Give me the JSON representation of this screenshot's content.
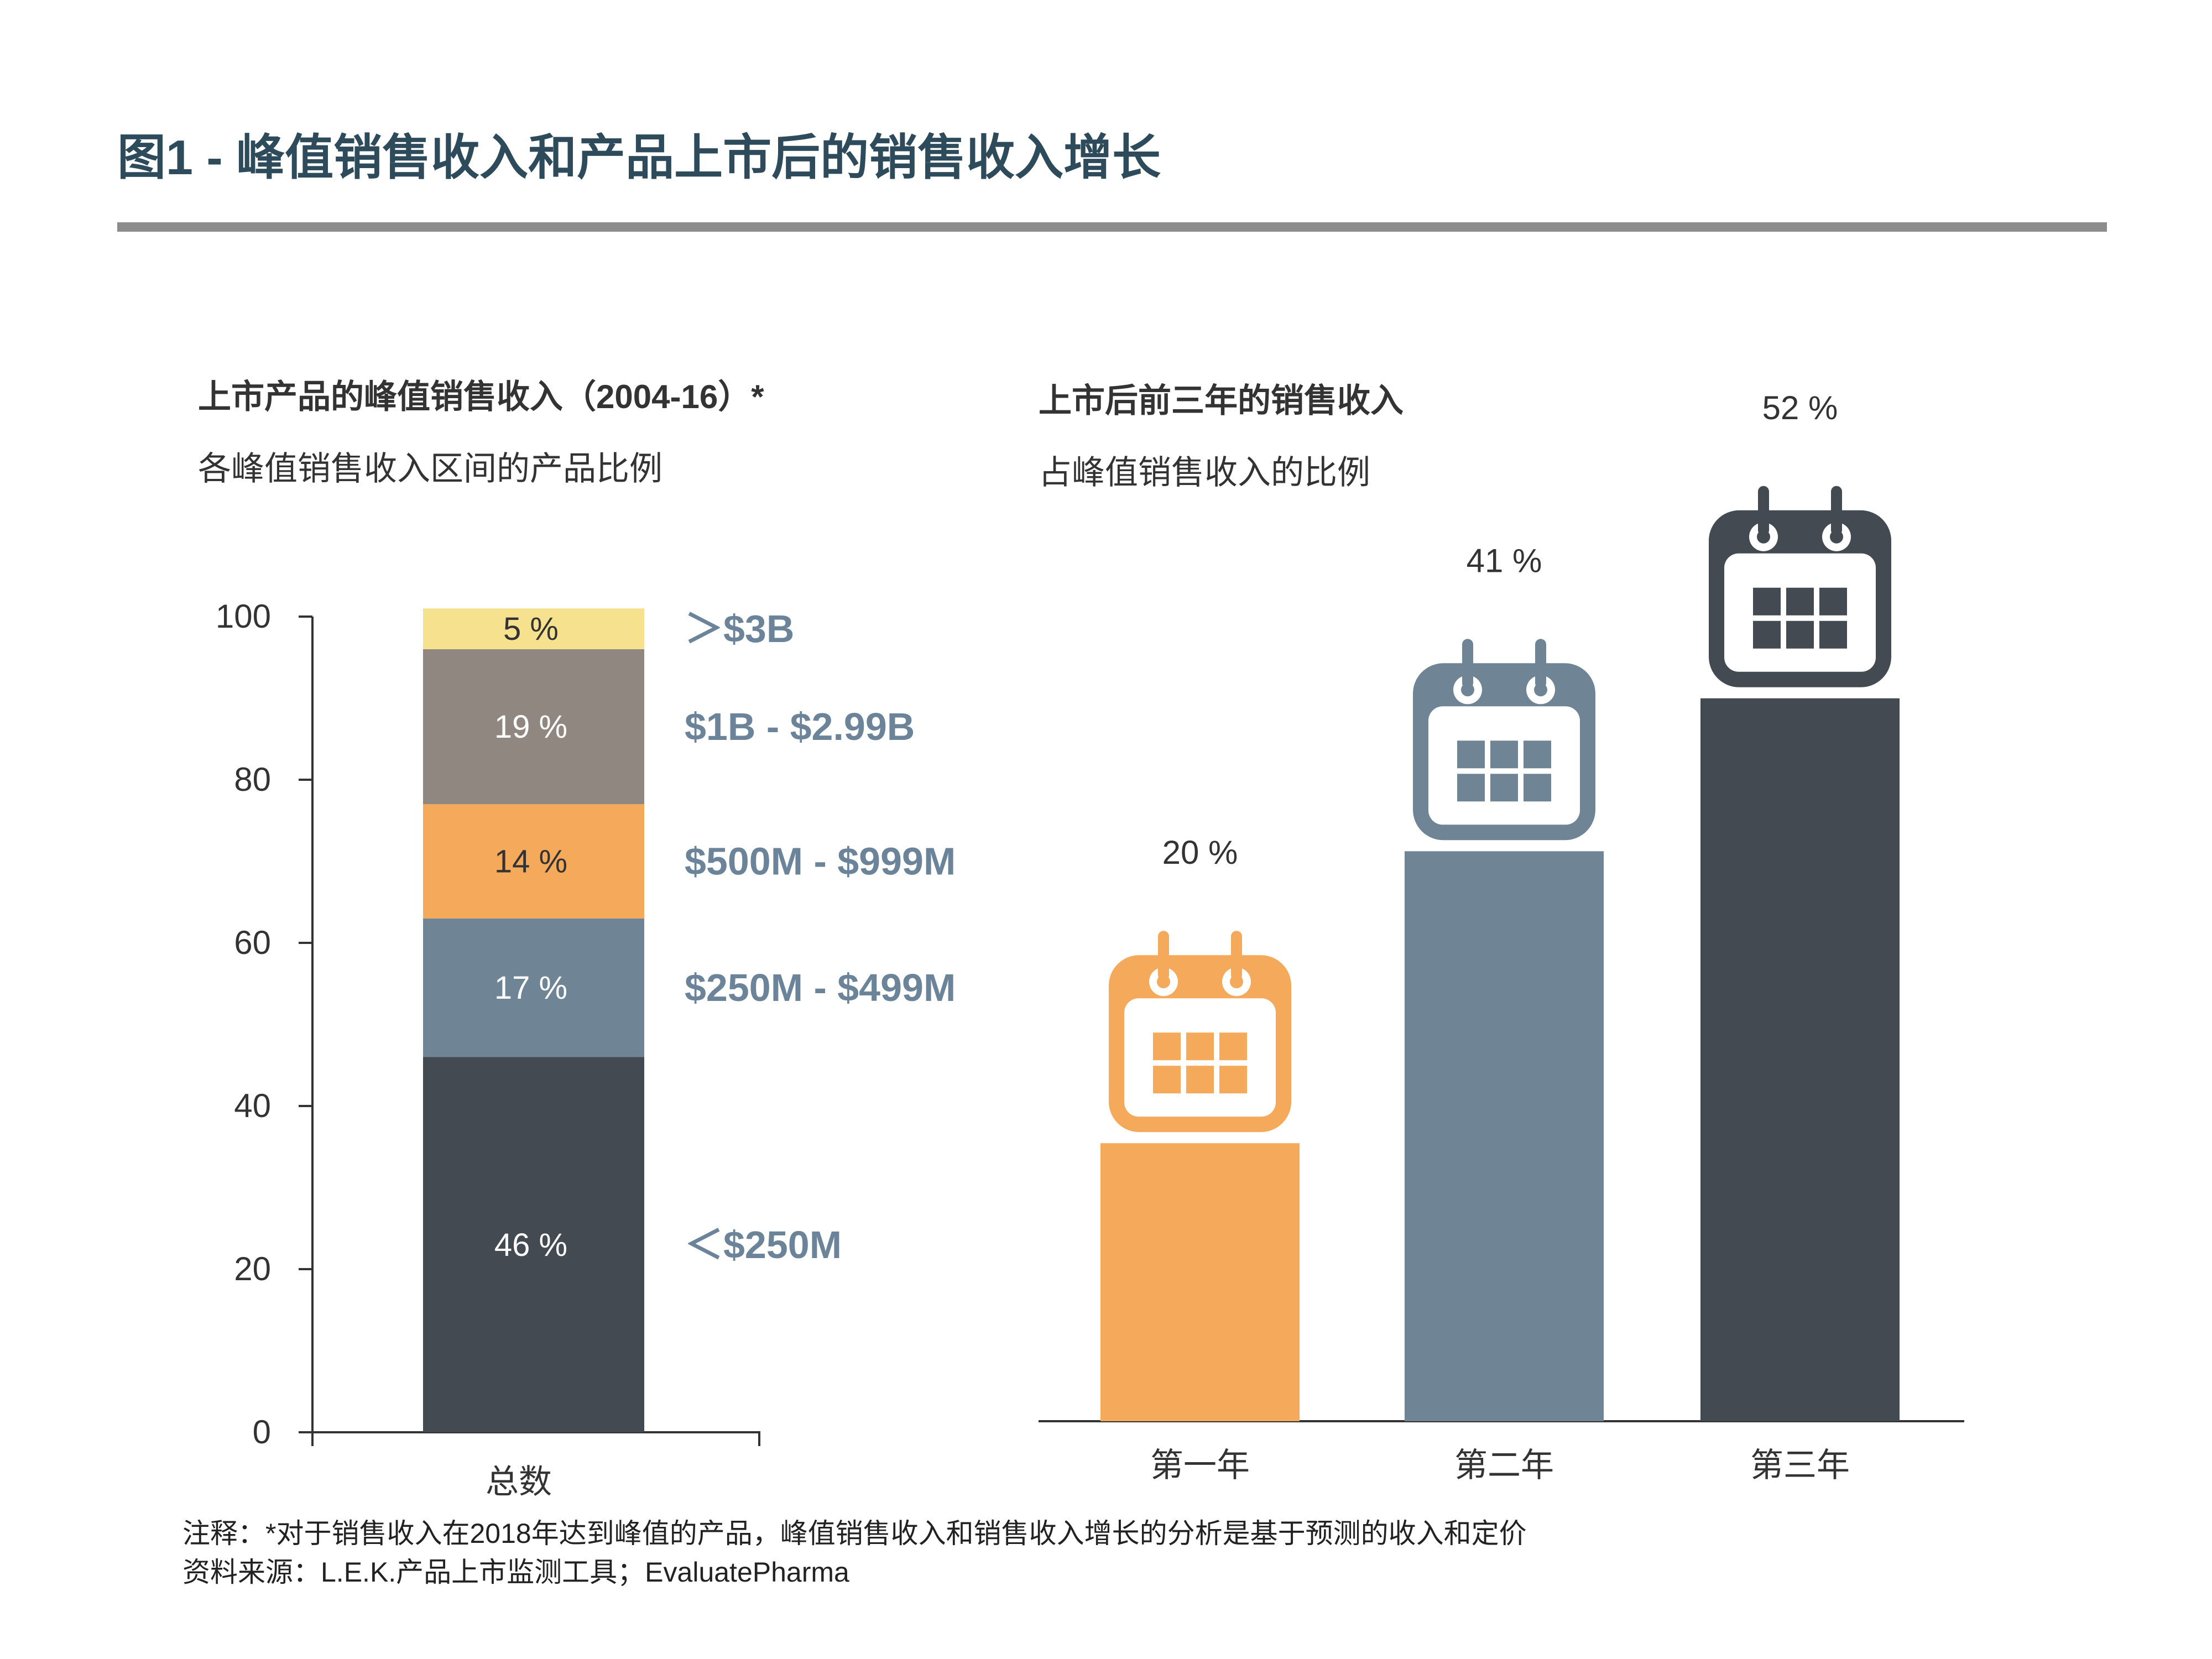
{
  "page": {
    "title": "图1 - 峰值销售收入和产品上市后的销售收入增长",
    "footnote": "注释：*对于销售收入在2018年达到峰值的产品，峰值销售收入和销售收入增长的分析是基于预测的收入和定价",
    "source": "资料来源：L.E.K.产品上市监测工具；EvaluatePharma"
  },
  "colors": {
    "title": "#2e4b5c",
    "rule": "#8c8c8c",
    "label_blue": "#6b8499",
    "axis": "#333333",
    "seg_lt250": "#434a51",
    "seg_250_499": "#6f8596",
    "seg_500_999": "#f5a95a",
    "seg_1b_299": "#8f8780",
    "seg_gt3b": "#f6e28e",
    "year1": "#f5a95a",
    "year2": "#6f8596",
    "year3": "#434a51"
  },
  "chart_data": [
    {
      "type": "bar",
      "subtype": "stacked",
      "title": "上市产品的峰值销售收入（2004-16）*",
      "subtitle": "各峰值销售收入区间的产品比例",
      "categories": [
        "总数"
      ],
      "ylim": [
        0,
        100
      ],
      "yticks": [
        "0",
        "20",
        "40",
        "60",
        "80",
        "100"
      ],
      "series": [
        {
          "name": "＜$250M",
          "values": [
            46
          ],
          "label": "46 %",
          "color": "#434a51",
          "label_color": "#ffffff"
        },
        {
          "name": "$250M - $499M",
          "values": [
            17
          ],
          "label": "17 %",
          "color": "#6f8596",
          "label_color": "#ffffff"
        },
        {
          "name": "$500M - $999M",
          "values": [
            14
          ],
          "label": "14 %",
          "color": "#f5a95a",
          "label_color": "#333333"
        },
        {
          "name": "$1B - $2.99B",
          "values": [
            19
          ],
          "label": "19 %",
          "color": "#8f8780",
          "label_color": "#ffffff"
        },
        {
          "name": "＞$3B",
          "values": [
            5
          ],
          "label": "5 %",
          "color": "#f6e28e",
          "label_color": "#333333"
        }
      ]
    },
    {
      "type": "bar",
      "title": "上市后前三年的销售收入",
      "subtitle": "占峰值销售收入的比例",
      "categories": [
        "第一年",
        "第二年",
        "第三年"
      ],
      "values": [
        20,
        41,
        52
      ],
      "labels": [
        "20 %",
        "41 %",
        "52 %"
      ],
      "ylim": [
        0,
        72
      ],
      "colors": [
        "#f5a95a",
        "#6f8596",
        "#434a51"
      ],
      "icon": "calendar-icon"
    }
  ]
}
